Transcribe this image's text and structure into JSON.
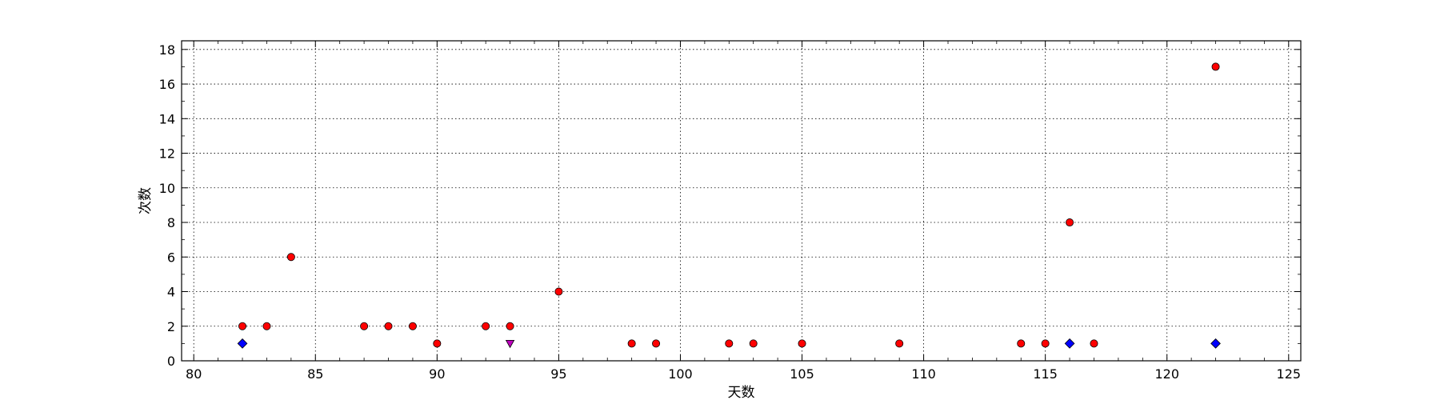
{
  "chart_data": {
    "type": "scatter",
    "title": "",
    "xlabel": "天数",
    "ylabel": "次数",
    "xlim": [
      79.5,
      125.5
    ],
    "ylim": [
      0,
      18.5
    ],
    "xticks": [
      80,
      85,
      90,
      95,
      100,
      105,
      110,
      115,
      120,
      125
    ],
    "yticks": [
      0,
      2,
      4,
      6,
      8,
      10,
      12,
      14,
      16,
      18
    ],
    "grid": true,
    "legend": "none",
    "series": [
      {
        "marker": "circle",
        "color": "#ff0000",
        "points": [
          [
            82,
            2
          ],
          [
            83,
            2
          ],
          [
            84,
            6
          ],
          [
            87,
            2
          ],
          [
            88,
            2
          ],
          [
            89,
            2
          ],
          [
            90,
            1
          ],
          [
            92,
            2
          ],
          [
            93,
            2
          ],
          [
            95,
            4
          ],
          [
            98,
            1
          ],
          [
            99,
            1
          ],
          [
            102,
            1
          ],
          [
            103,
            1
          ],
          [
            105,
            1
          ],
          [
            109,
            1
          ],
          [
            114,
            1
          ],
          [
            115,
            1
          ],
          [
            116,
            8
          ],
          [
            117,
            1
          ],
          [
            122,
            17
          ]
        ]
      },
      {
        "marker": "diamond",
        "color": "#0000ff",
        "points": [
          [
            82,
            1
          ],
          [
            116,
            1
          ],
          [
            122,
            1
          ]
        ]
      },
      {
        "marker": "triangle-down",
        "color": "#bf00bf",
        "points": [
          [
            93,
            1
          ]
        ]
      }
    ]
  }
}
